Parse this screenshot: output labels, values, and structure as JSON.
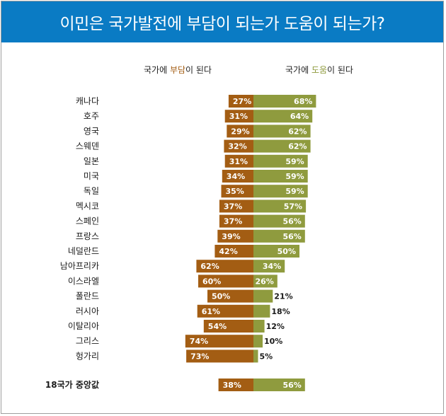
{
  "title": "이민은 국가발전에 부담이 되는가 도움이 되는가?",
  "headers": {
    "burden_prefix": "국가에 ",
    "burden_word": "부담",
    "burden_suffix": "이 된다",
    "help_prefix": "국가에 ",
    "help_word": "도움",
    "help_suffix": "이 된다"
  },
  "colors": {
    "burden": "#a35d13",
    "help": "#8f9b3e",
    "title_bg": "#0a7bc4"
  },
  "chart_data": {
    "type": "bar",
    "orientation": "horizontal-diverging",
    "categories": [
      "캐나다",
      "호주",
      "영국",
      "스웨덴",
      "일본",
      "미국",
      "독일",
      "멕시코",
      "스페인",
      "프랑스",
      "네덜란드",
      "남아프리카",
      "이스라엘",
      "폴란드",
      "러시아",
      "이탈리아",
      "그리스",
      "헝가리"
    ],
    "series": [
      {
        "name": "국가에 부담이 된다",
        "values": [
          27,
          31,
          29,
          32,
          31,
          34,
          35,
          37,
          37,
          39,
          42,
          62,
          60,
          50,
          61,
          54,
          74,
          73
        ]
      },
      {
        "name": "국가에 도움이 된다",
        "values": [
          68,
          64,
          62,
          62,
          59,
          59,
          59,
          57,
          56,
          56,
          50,
          34,
          26,
          21,
          18,
          12,
          10,
          5
        ]
      }
    ],
    "summary": {
      "label": "18국가 중앙값",
      "burden": 38,
      "help": 56
    },
    "value_suffix": "%"
  }
}
